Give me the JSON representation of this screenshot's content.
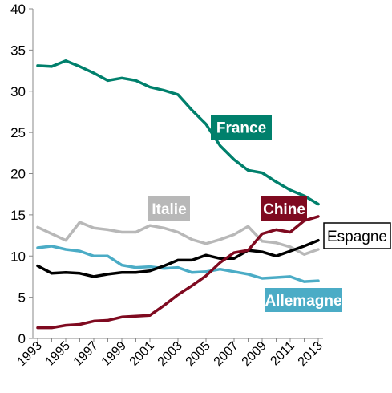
{
  "chart_data": {
    "type": "line",
    "title": "",
    "xlabel": "",
    "ylabel": "",
    "ylim": [
      0,
      40
    ],
    "y_ticks": [
      0,
      5,
      10,
      15,
      20,
      25,
      30,
      35,
      40
    ],
    "x": [
      1993,
      1994,
      1995,
      1996,
      1997,
      1998,
      1999,
      2000,
      2001,
      2002,
      2003,
      2004,
      2005,
      2006,
      2007,
      2008,
      2009,
      2010,
      2011,
      2012,
      2013
    ],
    "x_tick_labels": [
      "1993",
      "1995",
      "1997",
      "1999",
      "2001",
      "2003",
      "2005",
      "2007",
      "2009",
      "2011",
      "2013"
    ],
    "grid": false,
    "legend": "inline labels",
    "series": [
      {
        "name": "France",
        "color": "#00806C",
        "label_bg": "#00806C",
        "label_fg": "#ffffff",
        "values": [
          33.1,
          33.0,
          33.7,
          33.0,
          32.2,
          31.3,
          31.6,
          31.3,
          30.5,
          30.1,
          29.6,
          27.7,
          26.0,
          23.4,
          21.7,
          20.4,
          20.1,
          19.0,
          18.0,
          17.3,
          16.3
        ]
      },
      {
        "name": "Italie",
        "color": "#B8B8B8",
        "label_bg": "#B8B8B8",
        "label_fg": "#ffffff",
        "values": [
          13.5,
          12.7,
          11.9,
          14.1,
          13.4,
          13.2,
          12.9,
          12.9,
          13.7,
          13.4,
          12.9,
          12.0,
          11.5,
          12.0,
          12.6,
          13.6,
          11.8,
          11.6,
          11.1,
          10.2,
          10.8
        ]
      },
      {
        "name": "Chine",
        "color": "#7F0A20",
        "label_bg": "#7F0A20",
        "label_fg": "#ffffff",
        "values": [
          1.3,
          1.3,
          1.6,
          1.7,
          2.1,
          2.2,
          2.6,
          2.7,
          2.8,
          4.0,
          5.3,
          6.4,
          7.6,
          9.2,
          10.4,
          10.7,
          12.7,
          13.2,
          12.9,
          14.3,
          14.8
        ]
      },
      {
        "name": "Espagne",
        "color": "#000000",
        "label_bg": "#ffffff",
        "label_fg": "#000000",
        "values": [
          8.8,
          7.9,
          8.0,
          7.9,
          7.5,
          7.8,
          8.0,
          8.0,
          8.2,
          8.8,
          9.5,
          9.5,
          10.1,
          9.7,
          9.7,
          10.7,
          10.5,
          10.0,
          10.6,
          11.2,
          11.9
        ]
      },
      {
        "name": "Allemagne",
        "color": "#4BACC6",
        "label_bg": "#4BACC6",
        "label_fg": "#ffffff",
        "values": [
          11.0,
          11.2,
          10.8,
          10.6,
          10.0,
          10.0,
          8.9,
          8.6,
          8.7,
          8.5,
          8.6,
          8.0,
          8.1,
          8.4,
          8.1,
          7.8,
          7.3,
          7.4,
          7.5,
          6.9,
          7.0
        ]
      }
    ]
  }
}
